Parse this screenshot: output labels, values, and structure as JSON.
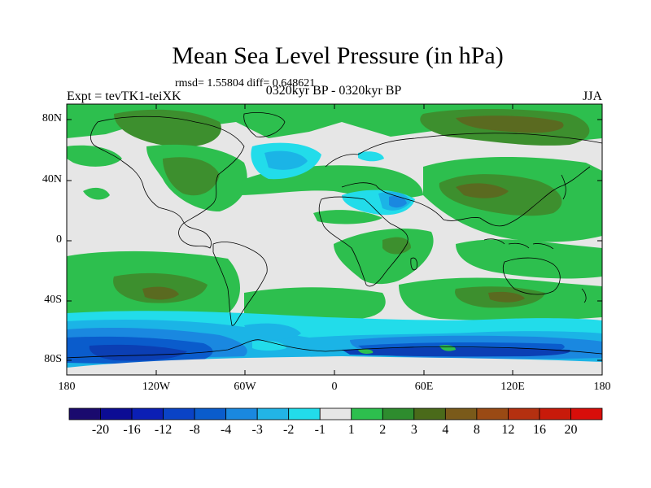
{
  "header": {
    "title": "Mean Sea Level Pressure (in hPa)",
    "stats": "rmsd= 1.55804 diff= 0.648621",
    "experiment": "Expt = tevTK1-teiXK",
    "period": "0320kyr BP - 0320kyr BP",
    "season": "JJA"
  },
  "axes": {
    "lat_labels": [
      "80N",
      "40N",
      "0",
      "40S",
      "80S"
    ],
    "lon_labels": [
      "180",
      "120W",
      "60W",
      "0",
      "60E",
      "120E",
      "180"
    ]
  },
  "colorbar": {
    "labels": [
      "-20",
      "-16",
      "-12",
      "-8",
      "-4",
      "-3",
      "-2",
      "-1",
      "1",
      "2",
      "3",
      "4",
      "8",
      "12",
      "16",
      "20"
    ],
    "colors": [
      "#1a0a6e",
      "#0c0c94",
      "#0b1fb4",
      "#0a43c6",
      "#0a5ccc",
      "#1a88e0",
      "#22b4e6",
      "#22dcea",
      "#e6e6e6",
      "#2dbf4e",
      "#2e8c2e",
      "#4a6a1a",
      "#7a5a1a",
      "#9a4a14",
      "#b43010",
      "#c81a0a",
      "#d80e0a"
    ]
  },
  "map_colors": {
    "background": "#e6e6e6",
    "ocean_pos2": "#2dbf4e",
    "pos3": "#3d8f2e",
    "pos4": "#5a6a20",
    "pos8": "#7a5a1a",
    "neg1": "#22dcea",
    "neg2": "#1bb4e6",
    "neg3": "#1a88e0",
    "neg4": "#0a5ccc",
    "neg8": "#0b3fb4",
    "neg12": "#0c1f9a",
    "coast": "#000000"
  }
}
